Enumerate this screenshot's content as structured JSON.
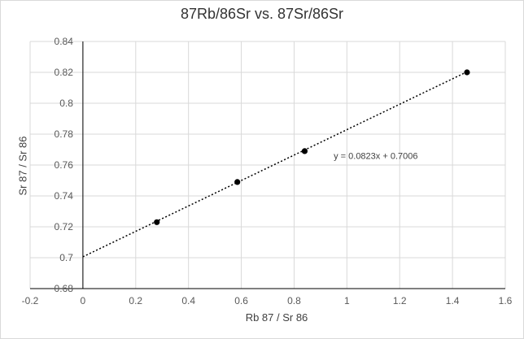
{
  "chart_data": {
    "type": "scatter",
    "title": "87Rb/86Sr vs. 87Sr/86Sr",
    "xlabel": "Rb 87 / Sr 86",
    "ylabel": "Sr 87 / Sr 86",
    "xlim": [
      -0.2,
      1.6
    ],
    "ylim": [
      0.68,
      0.84
    ],
    "x_ticks": [
      -0.2,
      0,
      0.2,
      0.4,
      0.6,
      0.8,
      1,
      1.2,
      1.4,
      1.6
    ],
    "x_tick_labels": [
      "-0.2",
      "0",
      "0.2",
      "0.4",
      "0.6",
      "0.8",
      "1",
      "1.2",
      "1.4",
      "1.6"
    ],
    "y_ticks": [
      0.68,
      0.7,
      0.72,
      0.74,
      0.76,
      0.78,
      0.8,
      0.82,
      0.84
    ],
    "y_tick_labels": [
      "0.68",
      "0.7",
      "0.72",
      "0.74",
      "0.76",
      "0.78",
      "0.8",
      "0.82",
      "0.84"
    ],
    "grid": true,
    "points": [
      {
        "x": 0.28,
        "y": 0.723
      },
      {
        "x": 0.585,
        "y": 0.749
      },
      {
        "x": 0.84,
        "y": 0.769
      },
      {
        "x": 1.455,
        "y": 0.82
      }
    ],
    "trendline": {
      "slope": 0.0823,
      "intercept": 0.7006,
      "x_range": [
        0,
        1.455
      ],
      "equation_label": "y = 0.0823x + 0.7006",
      "label_anchor": {
        "x": 0.95,
        "y": 0.764
      }
    },
    "colors": {
      "point": "#000000",
      "trendline": "#000000",
      "grid": "#d9d9d9",
      "axis": "#000000"
    }
  }
}
